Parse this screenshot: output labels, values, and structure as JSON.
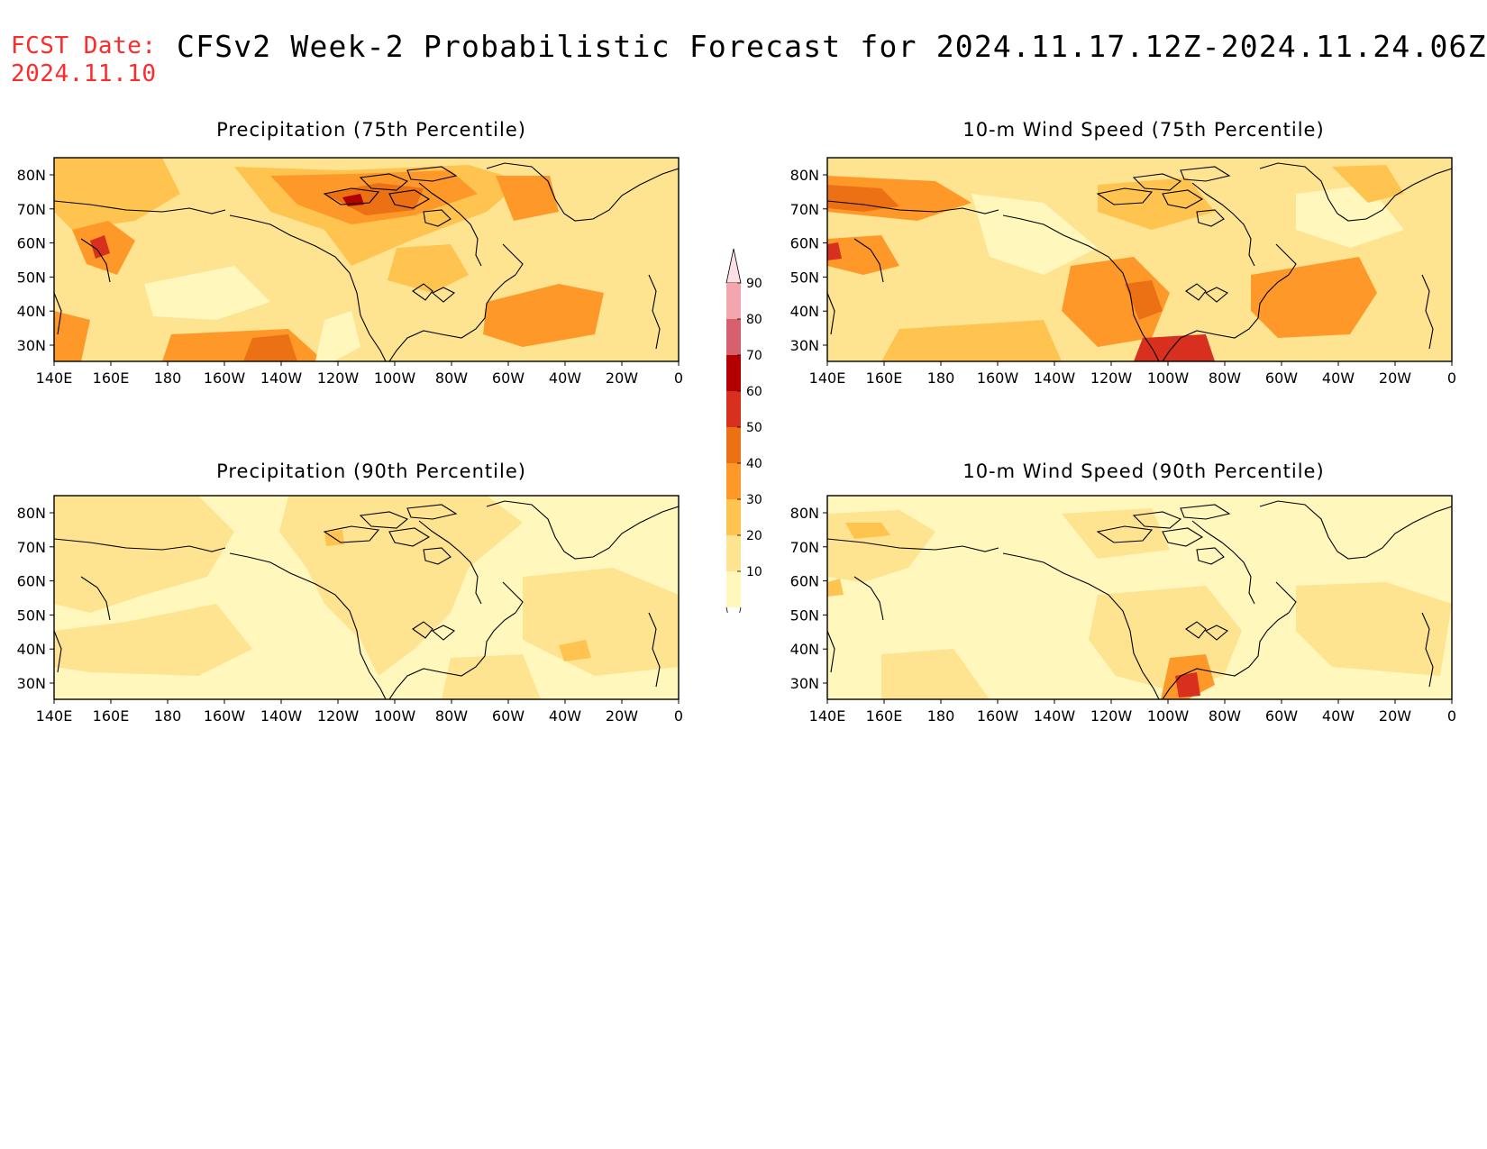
{
  "header": {
    "fcst_label": "FCST Date:",
    "fcst_date": "2024.11.10",
    "title": "CFSv2 Week-2 Probabilistic Forecast for 2024.11.17.12Z-2024.11.24.06Z"
  },
  "axes": {
    "lat_labels": [
      "80N",
      "70N",
      "60N",
      "50N",
      "40N",
      "30N"
    ],
    "lon_labels": [
      "140E",
      "160E",
      "180",
      "160W",
      "140W",
      "120W",
      "100W",
      "80W",
      "60W",
      "40W",
      "20W",
      "0"
    ]
  },
  "panels": [
    {
      "title": "Precipitation (75th Percentile)"
    },
    {
      "title": "10-m Wind Speed (75th Percentile)"
    },
    {
      "title": "Precipitation (90th Percentile)"
    },
    {
      "title": "10-m Wind Speed (90th Percentile)"
    }
  ],
  "colorbar": {
    "levels": [
      "10",
      "20",
      "30",
      "40",
      "50",
      "60",
      "70",
      "80",
      "90"
    ],
    "colors": [
      "#fff7bc",
      "#fee391",
      "#fec44f",
      "#fe9929",
      "#ec7014",
      "#d7301f",
      "#b30000",
      "#d6606d",
      "#f4a6ae",
      "#fde0e4"
    ]
  }
}
